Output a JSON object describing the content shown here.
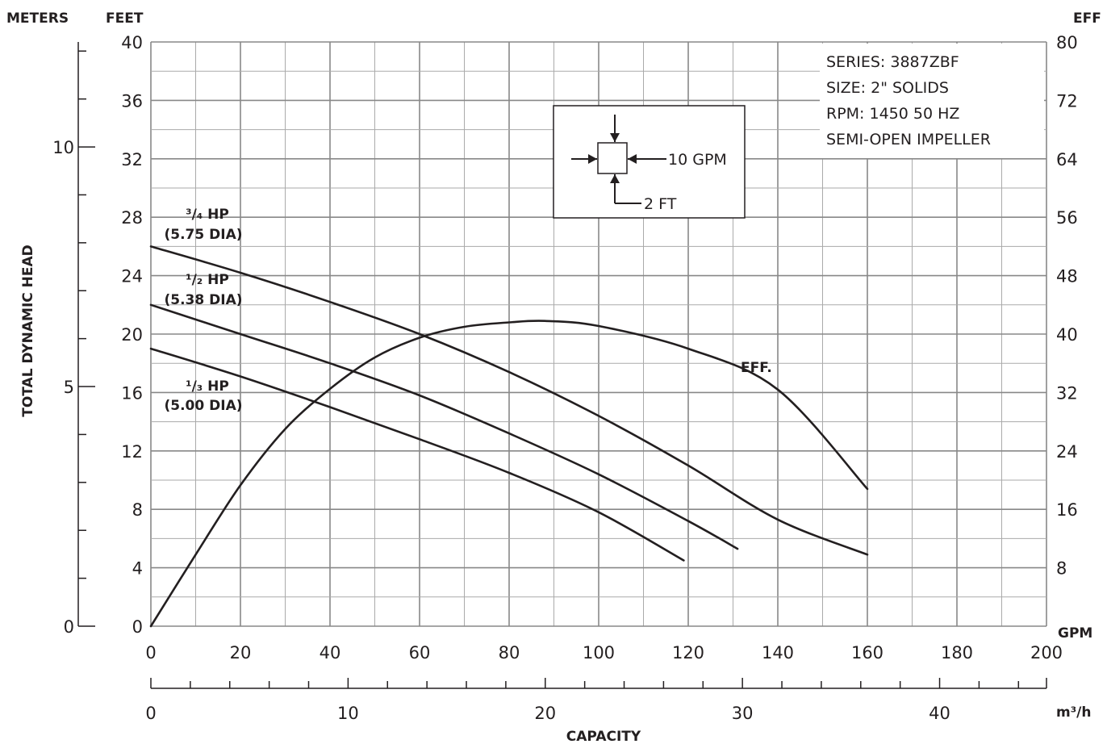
{
  "chart_data": {
    "type": "line",
    "x_axis": {
      "unit": "GPM",
      "range": [
        0,
        200
      ],
      "ticks": [
        0,
        20,
        40,
        60,
        80,
        100,
        120,
        140,
        160,
        180,
        200
      ],
      "title": "CAPACITY"
    },
    "x2_axis": {
      "unit": "m³/h",
      "range": [
        0,
        45.42
      ],
      "ticks": [
        0,
        10,
        20,
        30,
        40
      ]
    },
    "y_left_feet": {
      "unit": "FEET",
      "range": [
        0,
        40
      ],
      "ticks": [
        0,
        4,
        8,
        12,
        16,
        20,
        24,
        28,
        32,
        36,
        40
      ]
    },
    "y_left_meters": {
      "unit": "METERS",
      "range": [
        0,
        12.19
      ],
      "ticks": [
        0,
        5,
        10
      ],
      "title": "TOTAL DYNAMIC HEAD"
    },
    "y_right_eff": {
      "unit": "EFF",
      "range": [
        0,
        80
      ],
      "ticks": [
        8,
        16,
        24,
        32,
        40,
        48,
        56,
        64,
        72,
        80
      ]
    },
    "grid": true,
    "info_box": [
      "SERIES: 3887ZBF",
      "SIZE: 2\" SOLIDS",
      "RPM: 1450 50 HZ",
      "SEMI-OPEN IMPELLER"
    ],
    "grid_legend": {
      "x_step": "10 GPM",
      "y_step": "2 FT"
    },
    "series": [
      {
        "name": "3/4 HP (5.75 DIA)",
        "label_hp": "³/₄ HP",
        "label_dia": "(5.75 DIA)",
        "axis": "feet",
        "x": [
          0,
          20,
          40,
          60,
          80,
          100,
          120,
          140,
          160
        ],
        "y": [
          26,
          24.2,
          22.2,
          20,
          17.4,
          14.4,
          11,
          7.3,
          4.9
        ]
      },
      {
        "name": "1/2 HP (5.38 DIA)",
        "label_hp": "¹/₂ HP",
        "label_dia": "(5.38 DIA)",
        "axis": "feet",
        "x": [
          0,
          20,
          40,
          60,
          80,
          100,
          120,
          131
        ],
        "y": [
          22,
          20,
          18,
          15.8,
          13.2,
          10.4,
          7.2,
          5.3
        ]
      },
      {
        "name": "1/3 HP (5.00 DIA)",
        "label_hp": "¹/₃ HP",
        "label_dia": "(5.00 DIA)",
        "axis": "feet",
        "x": [
          0,
          20,
          40,
          60,
          80,
          100,
          119
        ],
        "y": [
          19,
          17.1,
          15,
          12.8,
          10.5,
          7.8,
          4.5
        ]
      },
      {
        "name": "EFF",
        "label_hp": "EFF.",
        "axis": "eff",
        "x": [
          0,
          10,
          20,
          30,
          40,
          50,
          60,
          70,
          80,
          88,
          100,
          120,
          140,
          160
        ],
        "y": [
          0,
          9.8,
          19.3,
          27,
          32.5,
          36.8,
          39.5,
          41,
          41.6,
          41.8,
          41.1,
          38,
          32.4,
          18.8
        ]
      }
    ]
  }
}
